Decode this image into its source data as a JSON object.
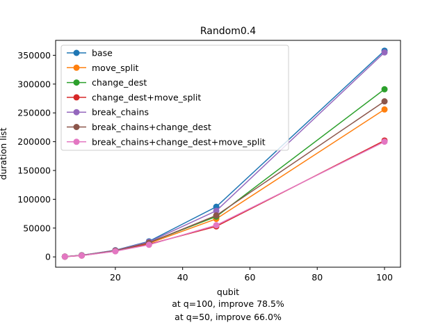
{
  "chart_data": {
    "type": "line",
    "title": "Random0.4",
    "xlabel": "qubit",
    "ylabel": "duration list",
    "xlim": [
      2.25,
      104.75
    ],
    "ylim": [
      -17900,
      375900
    ],
    "x_ticks": [
      20,
      40,
      60,
      80,
      100
    ],
    "y_ticks": [
      0,
      50000,
      100000,
      150000,
      200000,
      250000,
      300000,
      350000
    ],
    "x": [
      5,
      10,
      20,
      30,
      50,
      100
    ],
    "grid": false,
    "legend_position": "upper-left",
    "series": [
      {
        "name": "base",
        "color": "#1f77b4",
        "values": [
          500,
          2800,
          11500,
          27000,
          87000,
          358000
        ]
      },
      {
        "name": "move_split",
        "color": "#ff7f0e",
        "values": [
          450,
          2500,
          10500,
          23500,
          66000,
          256000
        ]
      },
      {
        "name": "change_dest",
        "color": "#2ca02c",
        "values": [
          480,
          2700,
          11000,
          25000,
          70000,
          291000
        ]
      },
      {
        "name": "change_dest+move_split",
        "color": "#d62728",
        "values": [
          420,
          2300,
          10000,
          22000,
          53000,
          202000
        ]
      },
      {
        "name": "break_chains",
        "color": "#9467bd",
        "values": [
          490,
          2750,
          11300,
          26000,
          80000,
          355000
        ]
      },
      {
        "name": "break_chains+change_dest",
        "color": "#8c564b",
        "values": [
          470,
          2600,
          10800,
          24500,
          72000,
          270000
        ]
      },
      {
        "name": "break_chains+change_dest+move_split",
        "color": "#e377c2",
        "values": [
          410,
          2200,
          9800,
          21000,
          55000,
          200000
        ]
      }
    ]
  },
  "annotations": {
    "line1": "at q=100, improve 78.5%",
    "line2": "at q=50, improve 66.0%"
  }
}
